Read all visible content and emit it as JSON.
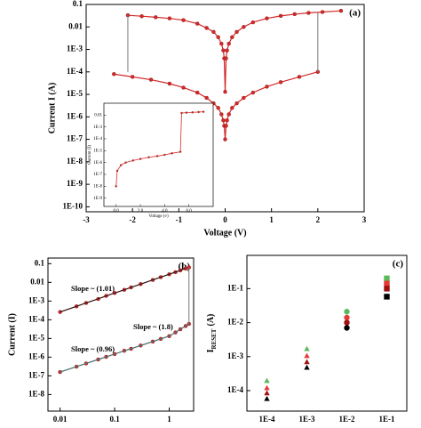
{
  "chart_data": [
    {
      "type": "line",
      "label": "(a)",
      "xlabel": "Voltage (V)",
      "ylabel": "Current I (A)",
      "ylog": true,
      "xlim": [
        -3,
        3
      ],
      "ylim": [
        6e-11,
        0.1
      ],
      "xticks": [
        -3,
        -2,
        -1,
        0,
        1,
        2,
        3
      ],
      "yticks": [
        0.1,
        0.01,
        {
          "value": 0.001,
          "label": "1E-3"
        },
        {
          "value": 0.0001,
          "label": "1E-4"
        },
        {
          "value": 1e-05,
          "label": "1E-5"
        },
        {
          "value": 1e-06,
          "label": "1E-6"
        },
        {
          "value": 1e-07,
          "label": "1E-7"
        },
        {
          "value": 1e-08,
          "label": "1E-8"
        },
        {
          "value": 1e-09,
          "label": "1E-9"
        },
        {
          "value": 1e-10,
          "label": "1E-10"
        }
      ],
      "series": [
        {
          "color": "#d42a2a",
          "style": "line-markers",
          "x": [
            -2.1,
            -1.8,
            -1.5,
            -1.2,
            -0.9,
            -0.6,
            -0.4,
            -0.25,
            -0.15,
            -0.08,
            -0.04,
            -0.02,
            0,
            0.02,
            0.04,
            0.08,
            0.15,
            0.25,
            0.4,
            0.6,
            0.9,
            1.2,
            1.5,
            1.8,
            2.1,
            2.5
          ],
          "values": [
            0.033,
            0.03,
            0.027,
            0.024,
            0.02,
            0.014,
            0.009,
            0.006,
            0.0035,
            0.0018,
            0.0009,
            0.0004,
            1.3e-05,
            0.0004,
            0.0009,
            0.0018,
            0.0035,
            0.006,
            0.01,
            0.016,
            0.024,
            0.031,
            0.037,
            0.042,
            0.046,
            0.052
          ]
        },
        {
          "color": "#d42a2a",
          "style": "line-markers",
          "x": [
            -2.4,
            -2,
            -1.6,
            -1.2,
            -0.9,
            -0.6,
            -0.4,
            -0.25,
            -0.15,
            -0.08,
            -0.04,
            -0.02,
            0,
            0.02,
            0.04,
            0.08,
            0.15,
            0.25,
            0.4,
            0.6,
            0.9,
            1.2,
            1.6,
            2
          ],
          "values": [
            8e-05,
            6e-05,
            4.5e-05,
            3e-05,
            2e-05,
            1.2e-05,
            7e-06,
            4e-06,
            2.5e-06,
            1.3e-06,
            7e-07,
            4e-07,
            1e-07,
            4e-07,
            7e-07,
            1.3e-06,
            2.5e-06,
            4e-06,
            7e-06,
            1.2e-05,
            2.2e-05,
            3.5e-05,
            6e-05,
            0.0001
          ]
        },
        {
          "color": "#777777",
          "style": "line",
          "x": [
            -2.1,
            -2.1
          ],
          "values": [
            0.0001,
            0.033
          ]
        },
        {
          "color": "#777777",
          "style": "line",
          "x": [
            2,
            2
          ],
          "values": [
            0.0001,
            0.046
          ]
        }
      ]
    },
    {
      "type": "line",
      "xlabel": "Voltage (v)",
      "ylabel": "Current (I)",
      "ylog": true,
      "xlim": [
        -1,
        8
      ],
      "ylim": [
        2e-10,
        0.1
      ],
      "xticks": [
        {
          "value": 0,
          "label": "0.0"
        },
        {
          "value": 2,
          "label": "2.0"
        },
        {
          "value": 4,
          "label": "4.0"
        },
        {
          "value": 6,
          "label": "6.0"
        }
      ],
      "yticks": [
        0.01,
        {
          "value": 0.001,
          "label": "1E-3"
        },
        {
          "value": 0.0001,
          "label": "1E-4"
        },
        {
          "value": 1e-05,
          "label": "1E-5"
        },
        {
          "value": 1e-06,
          "label": "1E-6"
        },
        {
          "value": 1e-07,
          "label": "1E-7"
        },
        {
          "value": 1e-08,
          "label": "1E-8"
        },
        {
          "value": 1e-09,
          "label": "1E-9"
        }
      ],
      "series": [
        {
          "color": "#d42a2a",
          "style": "line-markers",
          "x": [
            0,
            0.1,
            0.4,
            0.8,
            1.4,
            2,
            2.7,
            3.4,
            4,
            4.6,
            5.3,
            5.4,
            5.8,
            6.3,
            6.8,
            7.2
          ],
          "values": [
            1e-08,
            2e-07,
            6e-07,
            1e-06,
            1.5e-06,
            2e-06,
            2.8e-06,
            3.5e-06,
            4.5e-06,
            6e-06,
            8e-06,
            0.015,
            0.016,
            0.017,
            0.018,
            0.019
          ]
        }
      ]
    },
    {
      "type": "line",
      "label": "(b)",
      "xlabel": "Voltage (V)",
      "ylabel": "Current (I)",
      "xlog": true,
      "ylog": true,
      "xlim": [
        0.006,
        2.8
      ],
      "ylim": [
        1.3e-09,
        0.2
      ],
      "xticks": [
        0.01,
        0.1,
        1
      ],
      "yticks": [
        0.1,
        0.01,
        {
          "value": 0.001,
          "label": "1E-3"
        },
        {
          "value": 0.0001,
          "label": "1E-4"
        },
        {
          "value": 1e-05,
          "label": "1E-5"
        },
        {
          "value": 1e-06,
          "label": "1E-6"
        },
        {
          "value": 1e-07,
          "label": "1E-7"
        },
        {
          "value": 1e-08,
          "label": "1E-8"
        }
      ],
      "annotations": [
        "Slope ~ (1.01)",
        "Slope ~ (1.8)",
        "Slope ~ (0.96)"
      ],
      "series": [
        {
          "color": "#d42a2a",
          "style": "line-markers",
          "x": [
            0.01,
            0.02,
            0.03,
            0.05,
            0.07,
            0.1,
            0.15,
            0.2,
            0.3,
            0.5,
            0.7,
            1,
            1.3,
            1.6,
            2,
            2.3
          ],
          "values": [
            0.00026,
            0.00052,
            0.00079,
            0.0013,
            0.0019,
            0.0027,
            0.004,
            0.0054,
            0.0081,
            0.0135,
            0.019,
            0.027,
            0.035,
            0.044,
            0.055,
            0.063
          ]
        },
        {
          "color": "#d42a2a",
          "style": "line-markers",
          "x": [
            0.01,
            0.02,
            0.03,
            0.05,
            0.07,
            0.1,
            0.15,
            0.2,
            0.3,
            0.5,
            0.7,
            1,
            1.3,
            1.6,
            2,
            2.3
          ],
          "values": [
            1.6e-07,
            3.1e-07,
            4.6e-07,
            7.5e-07,
            1.04e-06,
            1.46e-06,
            2.2e-06,
            2.8e-06,
            4.2e-06,
            6.8e-06,
            9.5e-06,
            1.33e-05,
            2.1e-05,
            3.1e-05,
            4.6e-05,
            6e-05
          ]
        },
        {
          "color": "#1a1a1a",
          "style": "line",
          "x": [
            0.01,
            2
          ],
          "values": [
            0.00026,
            0.055
          ]
        },
        {
          "color": "#2a8a8a",
          "style": "line",
          "x": [
            0.01,
            1
          ],
          "values": [
            1.6e-07,
            1.33e-05
          ]
        },
        {
          "color": "#2a8a8a",
          "style": "line",
          "x": [
            1,
            2.3
          ],
          "values": [
            1.33e-05,
            6e-05
          ]
        },
        {
          "color": "#777777",
          "style": "line",
          "x": [
            2.3,
            2.3
          ],
          "values": [
            6e-05,
            0.063
          ]
        }
      ]
    },
    {
      "type": "scatter",
      "label": "(c)",
      "xlabel": "Compliance Current (A)",
      "ylabel": [
        "I",
        "RESET",
        "(A)"
      ],
      "ylog": true,
      "categories": [
        "1E-4",
        "1E-3",
        "1E-2",
        "1E-1"
      ],
      "markers": [
        "triangle",
        "triangle",
        "circle",
        "square"
      ],
      "ylim": [
        2.5e-05,
        0.95
      ],
      "yticks": [
        {
          "value": 0.0001,
          "label": "1E-4"
        },
        {
          "value": 0.001,
          "label": "1E-3"
        },
        {
          "value": 0.01,
          "label": "1E-2"
        },
        {
          "value": 0.1,
          "label": "1E-1"
        }
      ],
      "series": [
        {
          "color": "#5cb85c",
          "values": [
            0.000196,
            0.0017,
            0.021,
            0.2
          ]
        },
        {
          "color": "#e53935",
          "values": [
            0.00012,
            0.00106,
            0.014,
            0.14
          ]
        },
        {
          "color": "#a01010",
          "values": [
            8.5e-05,
            0.0007,
            0.01,
            0.1
          ]
        },
        {
          "color": "#000000",
          "values": [
            5.8e-05,
            0.00048,
            0.007,
            0.058
          ]
        }
      ]
    }
  ]
}
